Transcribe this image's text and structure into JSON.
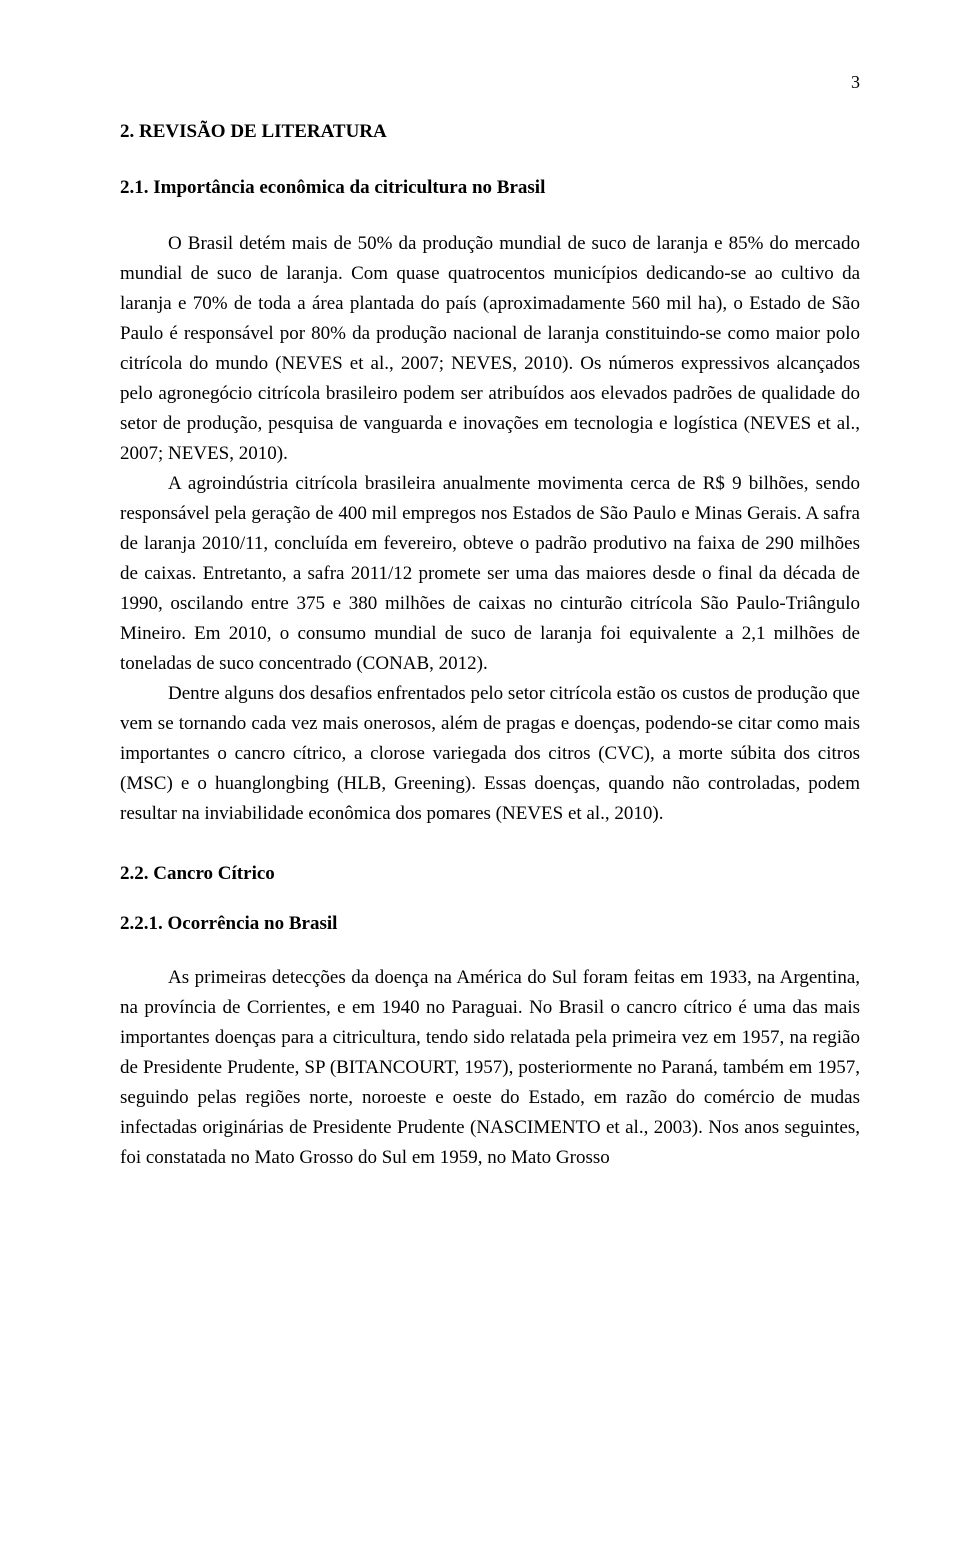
{
  "page_number": "3",
  "heading1": "2. REVISÃO DE LITERATURA",
  "heading2": "2.1. Importância econômica da citricultura no Brasil",
  "para1": "O Brasil detém mais de 50% da produção mundial de suco de laranja e 85% do mercado mundial de suco de laranja. Com quase quatrocentos municípios dedicando-se ao cultivo da laranja e 70% de toda a área plantada do país (aproximadamente 560 mil ha), o Estado de São Paulo é responsável por 80% da produção nacional de laranja constituindo-se como maior polo citrícola do mundo (NEVES et al., 2007; NEVES, 2010). Os números expressivos alcançados pelo agronegócio citrícola brasileiro podem ser atribuídos aos elevados padrões de qualidade do setor de produção, pesquisa de vanguarda e inovações em tecnologia e logística (NEVES et al., 2007; NEVES, 2010).",
  "para2": "A agroindústria citrícola brasileira anualmente movimenta cerca de R$ 9 bilhões, sendo responsável pela geração de 400 mil empregos nos Estados de São Paulo e Minas Gerais. A safra de laranja 2010/11, concluída em fevereiro, obteve o padrão produtivo na faixa de 290 milhões de caixas. Entretanto, a safra 2011/12 promete ser uma das maiores desde o final da década de 1990, oscilando entre 375 e 380 milhões de caixas no cinturão citrícola São Paulo-Triângulo Mineiro. Em 2010, o consumo mundial de suco de laranja foi equivalente a 2,1 milhões de toneladas de suco concentrado (CONAB, 2012).",
  "para3": "Dentre alguns dos desafios enfrentados pelo setor citrícola estão os custos de produção que vem se tornando cada vez mais onerosos, além de pragas e doenças, podendo-se citar como mais importantes o cancro cítrico, a clorose variegada dos citros (CVC), a morte súbita dos citros (MSC) e o huanglongbing (HLB, Greening). Essas doenças, quando não controladas, podem resultar na inviabilidade econômica dos pomares (NEVES et al., 2010).",
  "heading3": "2.2. Cancro Cítrico",
  "heading4": "2.2.1. Ocorrência no Brasil",
  "para4": "As primeiras detecções da doença na América do Sul foram feitas em 1933, na Argentina, na província de Corrientes, e em 1940 no Paraguai. No Brasil o cancro cítrico é uma das mais importantes doenças para a citricultura, tendo sido relatada pela primeira vez em 1957, na região de Presidente Prudente, SP (BITANCOURT, 1957), posteriormente no Paraná, também em 1957, seguindo pelas regiões norte, noroeste e oeste do Estado, em razão do comércio de mudas infectadas originárias de Presidente Prudente (NASCIMENTO et al., 2003). Nos anos seguintes, foi constatada no Mato Grosso do Sul em 1959, no Mato Grosso"
}
